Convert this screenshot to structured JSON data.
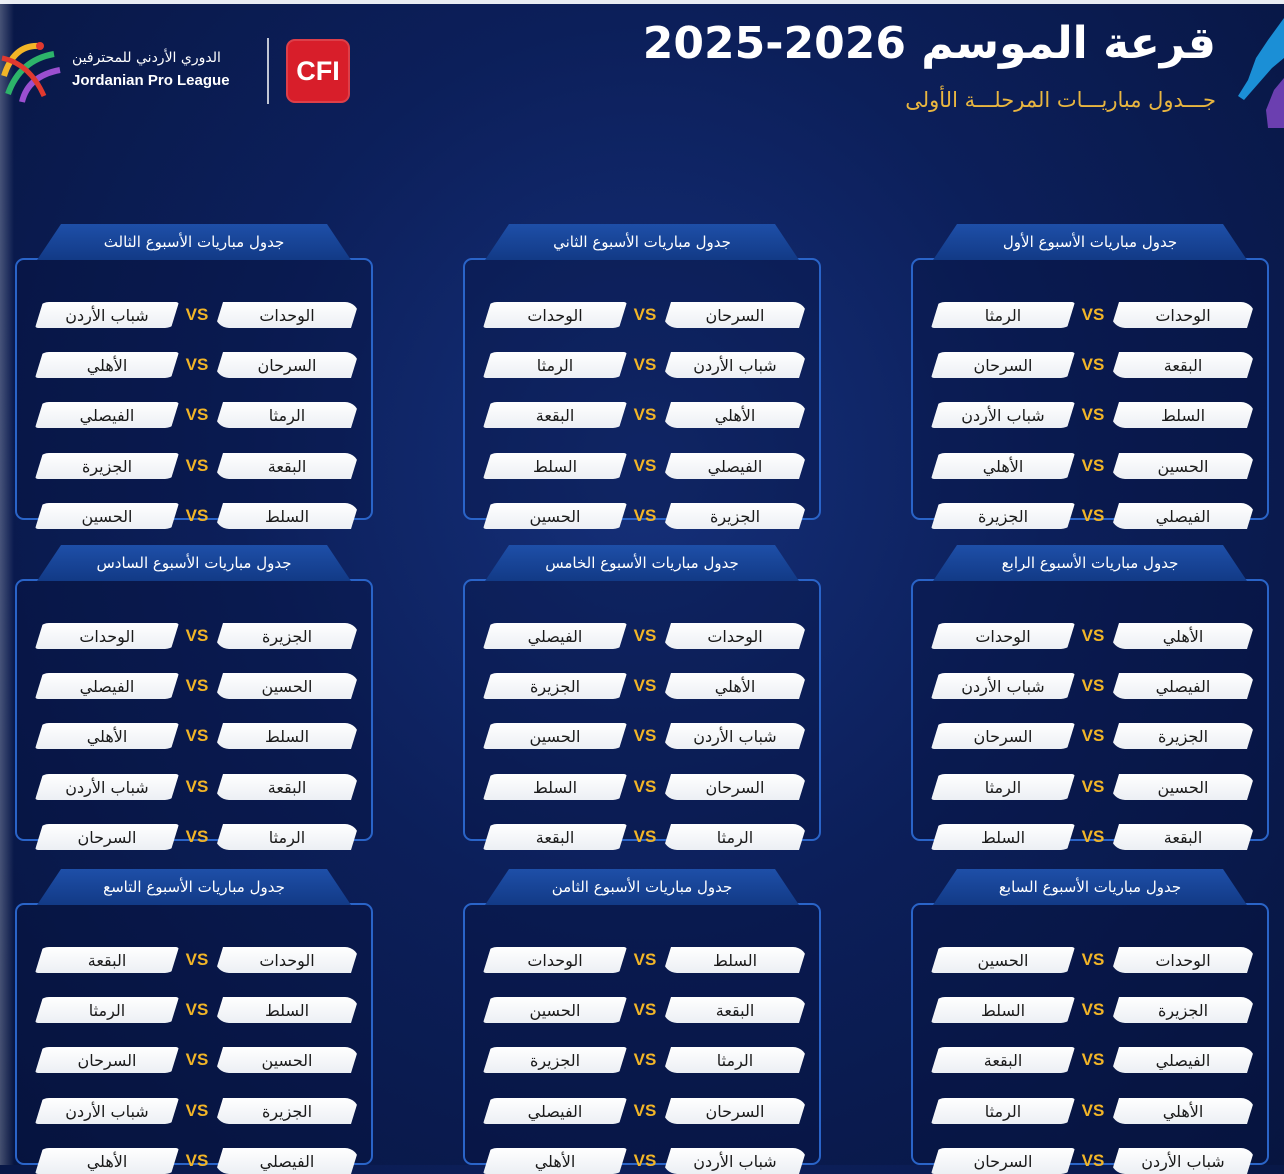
{
  "header": {
    "title": "قرعة الموسم 2026-2025",
    "subtitle": "جـــدول مباريـــات المرحلـــة الأولى"
  },
  "league": {
    "name_ar": "الدوري الأردني للمحترفين",
    "name_en": "Jordanian Pro League",
    "sponsor": "CFI"
  },
  "vs_label": "VS",
  "weeks": [
    {
      "title": "جدول مباريات الأسبوع الأول",
      "matches": [
        {
          "home": "الوحدات",
          "away": "الرمثا"
        },
        {
          "home": "البقعة",
          "away": "السرحان"
        },
        {
          "home": "السلط",
          "away": "شباب الأردن"
        },
        {
          "home": "الحسين",
          "away": "الأهلي"
        },
        {
          "home": "الفيصلي",
          "away": "الجزيرة"
        }
      ]
    },
    {
      "title": "جدول مباريات الأسبوع الثاني",
      "matches": [
        {
          "home": "السرحان",
          "away": "الوحدات"
        },
        {
          "home": "شباب الأردن",
          "away": "الرمثا"
        },
        {
          "home": "الأهلي",
          "away": "البقعة"
        },
        {
          "home": "الفيصلي",
          "away": "السلط"
        },
        {
          "home": "الجزيرة",
          "away": "الحسين"
        }
      ]
    },
    {
      "title": "جدول مباريات الأسبوع الثالث",
      "matches": [
        {
          "home": "الوحدات",
          "away": "شباب الأردن"
        },
        {
          "home": "السرحان",
          "away": "الأهلي"
        },
        {
          "home": "الرمثا",
          "away": "الفيصلي"
        },
        {
          "home": "البقعة",
          "away": "الجزيرة"
        },
        {
          "home": "السلط",
          "away": "الحسين"
        }
      ]
    },
    {
      "title": "جدول مباريات الأسبوع الرابع",
      "matches": [
        {
          "home": "الأهلي",
          "away": "الوحدات"
        },
        {
          "home": "الفيصلي",
          "away": "شباب الأردن"
        },
        {
          "home": "الجزيرة",
          "away": "السرحان"
        },
        {
          "home": "الحسين",
          "away": "الرمثا"
        },
        {
          "home": "البقعة",
          "away": "السلط"
        }
      ]
    },
    {
      "title": "جدول مباريات الأسبوع الخامس",
      "matches": [
        {
          "home": "الوحدات",
          "away": "الفيصلي"
        },
        {
          "home": "الأهلي",
          "away": "الجزيرة"
        },
        {
          "home": "شباب الأردن",
          "away": "الحسين"
        },
        {
          "home": "السرحان",
          "away": "السلط"
        },
        {
          "home": "الرمثا",
          "away": "البقعة"
        }
      ]
    },
    {
      "title": "جدول مباريات الأسبوع السادس",
      "matches": [
        {
          "home": "الجزيرة",
          "away": "الوحدات"
        },
        {
          "home": "الحسين",
          "away": "الفيصلي"
        },
        {
          "home": "السلط",
          "away": "الأهلي"
        },
        {
          "home": "البقعة",
          "away": "شباب الأردن"
        },
        {
          "home": "الرمثا",
          "away": "السرحان"
        }
      ]
    },
    {
      "title": "جدول مباريات الأسبوع السابع",
      "matches": [
        {
          "home": "الوحدات",
          "away": "الحسين"
        },
        {
          "home": "الجزيرة",
          "away": "السلط"
        },
        {
          "home": "الفيصلي",
          "away": "البقعة"
        },
        {
          "home": "الأهلي",
          "away": "الرمثا"
        },
        {
          "home": "شباب الأردن",
          "away": "السرحان"
        }
      ]
    },
    {
      "title": "جدول مباريات الأسبوع الثامن",
      "matches": [
        {
          "home": "السلط",
          "away": "الوحدات"
        },
        {
          "home": "البقعة",
          "away": "الحسين"
        },
        {
          "home": "الرمثا",
          "away": "الجزيرة"
        },
        {
          "home": "السرحان",
          "away": "الفيصلي"
        },
        {
          "home": "شباب الأردن",
          "away": "الأهلي"
        }
      ]
    },
    {
      "title": "جدول مباريات الأسبوع التاسع",
      "matches": [
        {
          "home": "الوحدات",
          "away": "البقعة"
        },
        {
          "home": "السلط",
          "away": "الرمثا"
        },
        {
          "home": "الحسين",
          "away": "السرحان"
        },
        {
          "home": "الجزيرة",
          "away": "شباب الأردن"
        },
        {
          "home": "الفيصلي",
          "away": "الأهلي"
        }
      ]
    }
  ]
}
